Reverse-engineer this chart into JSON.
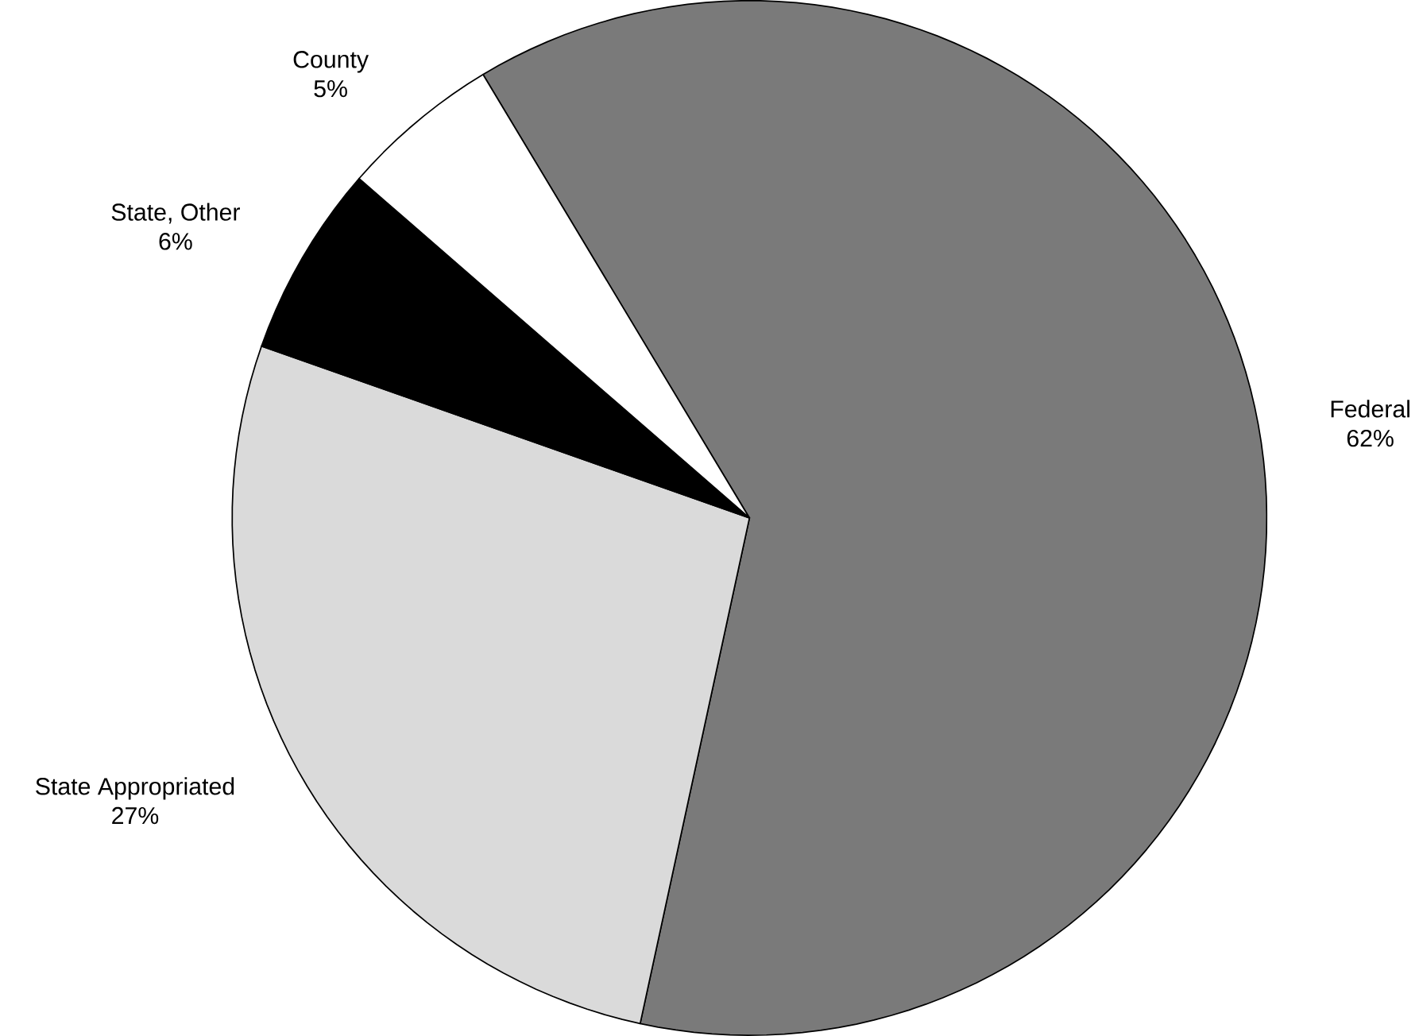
{
  "chart_data": {
    "type": "pie",
    "categories": [
      "Federal",
      "State Appropriated",
      "State, Other",
      "County"
    ],
    "values": [
      62,
      27,
      6,
      5
    ],
    "value_labels": [
      "62%",
      "27%",
      "6%",
      "5%"
    ],
    "colors": [
      "#7a7a7a",
      "#dadada",
      "#000000",
      "#ffffff"
    ]
  }
}
